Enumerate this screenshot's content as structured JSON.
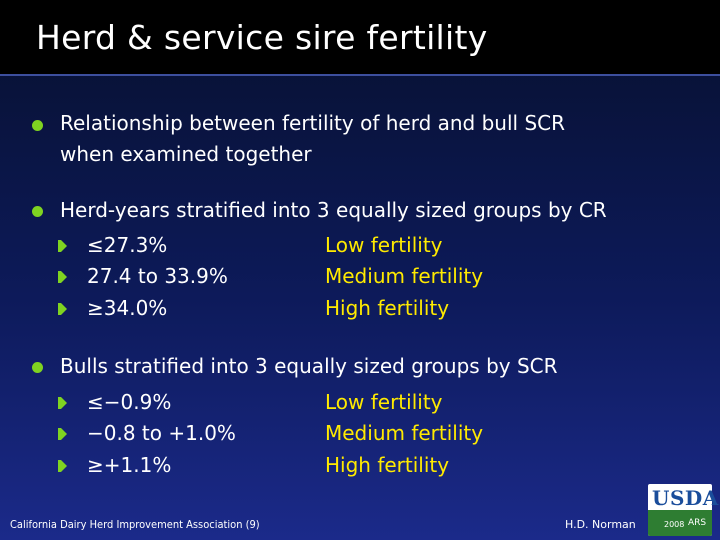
{
  "title": "Herd & service sire fertility",
  "bullets": [
    {
      "text": "Relationship between fertility of herd and bull SCR",
      "text_line2": "when examined together"
    },
    {
      "text": "Herd-years stratified into 3 equally sized groups by CR",
      "groups": [
        {
          "range": "≤27.3%",
          "level": "Low fertility"
        },
        {
          "range": "27.4 to 33.9%",
          "level": "Medium fertility"
        },
        {
          "range": "≥34.0%",
          "level": "High fertility"
        }
      ]
    },
    {
      "text": "Bulls stratified into 3 equally sized groups by SCR",
      "groups": [
        {
          "range": "≤−0.9%",
          "level": "Low fertility"
        },
        {
          "range": "−0.8 to +1.0%",
          "level": "Medium fertility"
        },
        {
          "range": "≥+1.1%",
          "level": "High fertility"
        }
      ]
    }
  ],
  "footer": {
    "left": "California Dairy Herd Improvement Association (9)",
    "right": "H.D. Norman"
  },
  "logo": {
    "letters": "USDA",
    "year": "2008",
    "badge": "ARS"
  },
  "colors": {
    "bullet": "#7fd321",
    "level_text": "#ffea00",
    "background": "#0d1a5a"
  }
}
